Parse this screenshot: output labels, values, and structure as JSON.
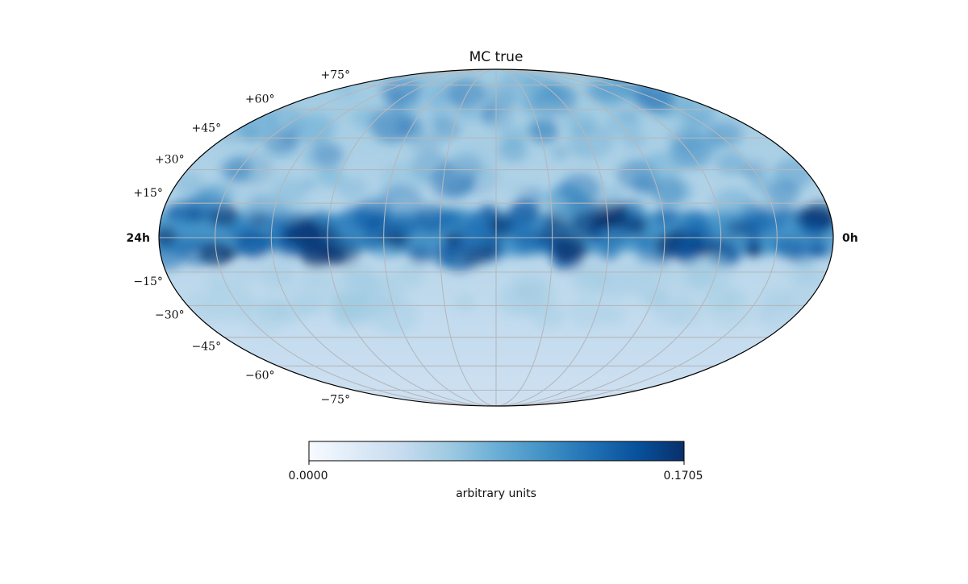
{
  "chart_data": {
    "type": "heatmap",
    "projection": "mollweide",
    "title": "MC true",
    "colormap": "Blues",
    "ra_labels": {
      "left": "24h",
      "right": "0h"
    },
    "dec_labels": [
      "+75°",
      "+60°",
      "+45°",
      "+30°",
      "+15°",
      "−15°",
      "−30°",
      "−45°",
      "−60°",
      "−75°"
    ],
    "dec_values": [
      75,
      60,
      45,
      30,
      15,
      -15,
      -30,
      -45,
      -60,
      -75
    ],
    "meridians_hours": [
      2,
      4,
      6,
      8,
      10,
      12,
      14,
      16,
      18,
      20,
      22
    ],
    "grid": true,
    "intensity_profile": {
      "description": "high concentration along equatorial band, low toward south",
      "lat_deg": [
        -90,
        -60,
        -30,
        -15,
        0,
        15,
        30,
        60,
        90
      ],
      "value": [
        0.028,
        0.032,
        0.045,
        0.06,
        0.14,
        0.085,
        0.075,
        0.058,
        0.05
      ]
    },
    "colorbar": {
      "min": 0.0,
      "max": 0.1705,
      "min_label": "0.0000",
      "max_label": "0.1705",
      "label": "arbitrary units",
      "orientation": "horizontal"
    }
  }
}
